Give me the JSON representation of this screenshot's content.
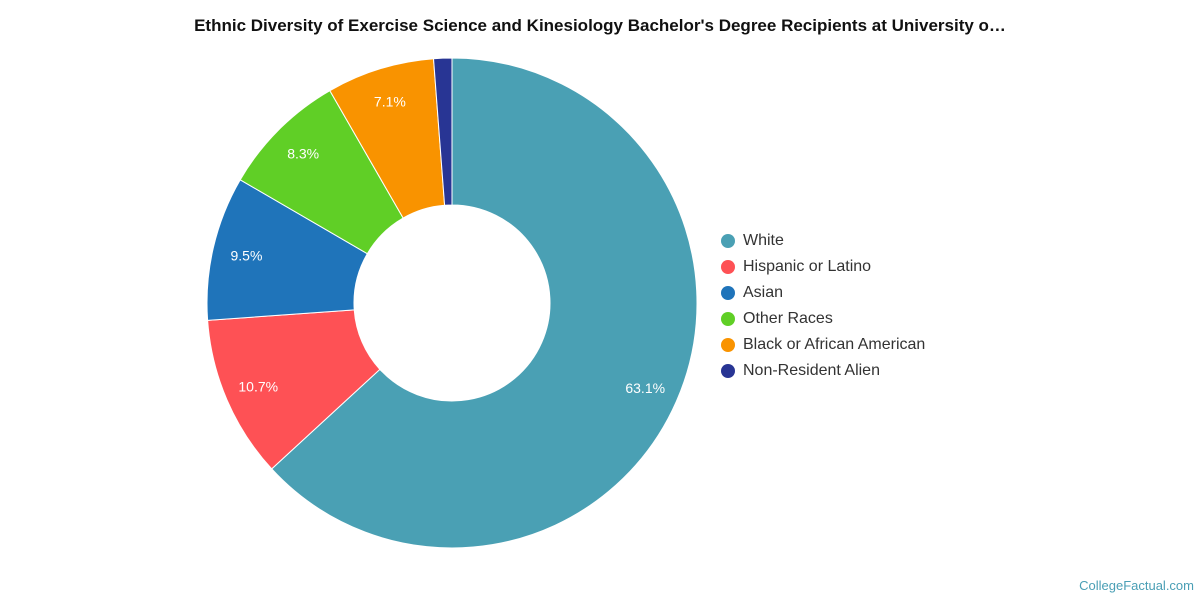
{
  "chart_data": {
    "type": "pie",
    "title": "Ethnic Diversity of Exercise Science and Kinesiology Bachelor's Degree Recipients at University o…",
    "legend_position": "right",
    "donut": true,
    "categories": [
      "White",
      "Hispanic or Latino",
      "Asian",
      "Other Races",
      "Black or African American",
      "Non-Resident Alien"
    ],
    "values": [
      63.1,
      10.7,
      9.5,
      8.3,
      7.1,
      1.2
    ],
    "labels": [
      "63.1%",
      "10.7%",
      "9.5%",
      "8.3%",
      "7.1%",
      ""
    ],
    "colors": [
      "#4aa0b4",
      "#fe5155",
      "#1f74ba",
      "#60cf26",
      "#f99300",
      "#283594"
    ]
  },
  "footer": {
    "source": "CollegeFactual.com"
  }
}
